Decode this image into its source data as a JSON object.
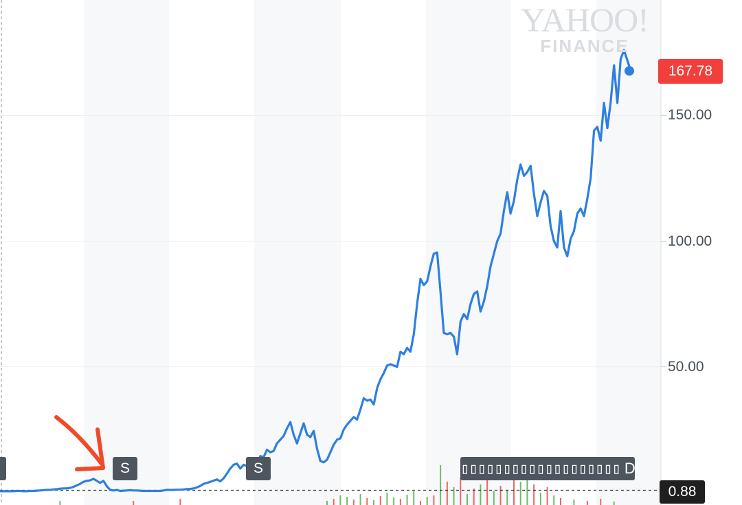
{
  "watermark": {
    "title": "YAHOO!",
    "subtitle": "FINANCE"
  },
  "markers": {
    "current_price_label": "167.78",
    "reference_price_label": "0.88",
    "split_label": "S",
    "dividend_glyphs": "▯▯▯▯▯▯▯▯▯▯▯▯▯▯▯▯▯▯▯",
    "dividend_end": "D"
  },
  "colors": {
    "line": "#2e7fe0",
    "up_volume": "#6dbb6a",
    "down_volume": "#ef6666",
    "annotation_arrow": "#ee4a2b",
    "price_badge": "#f23f3b",
    "flag": "#4d555e"
  },
  "chart_data": {
    "type": "line",
    "title": "",
    "xlabel": "",
    "ylabel": "",
    "ylim": [
      -5,
      196
    ],
    "y_ticks": [
      {
        "value": 50,
        "label": "50.00"
      },
      {
        "value": 100,
        "label": "100.00"
      },
      {
        "value": 150,
        "label": "150.00"
      }
    ],
    "reference_line": 0.88,
    "current_value": 167.78,
    "grid": true,
    "series": [
      {
        "values": [
          0.5,
          0.5,
          0.5,
          0.5,
          0.5,
          0.6,
          0.6,
          0.5,
          0.5,
          0.6,
          0.6,
          0.7,
          0.8,
          0.9,
          1.0,
          1.0,
          1.2,
          1.3,
          1.5,
          1.6,
          1.6,
          1.8,
          2.2,
          2.8,
          3.4,
          4.2,
          4.6,
          4.8,
          5.4,
          4.6,
          3.8,
          4.6,
          2.5,
          1.0,
          0.8,
          1.0,
          0.6,
          0.7,
          0.8,
          0.9,
          0.8,
          0.8,
          0.7,
          0.6,
          0.6,
          0.6,
          0.6,
          0.6,
          0.6,
          0.8,
          1.0,
          1.0,
          1.0,
          1.1,
          1.1,
          1.2,
          1.3,
          1.4,
          1.6,
          2.0,
          2.6,
          3.4,
          3.8,
          4.2,
          4.7,
          5.2,
          4.4,
          5.6,
          7.5,
          9.5,
          11.0,
          11.5,
          9.5,
          11.0,
          10.5,
          8.0,
          10.0,
          11.5,
          14.5,
          14.0,
          17.0,
          16.0,
          16.5,
          19.5,
          21.0,
          22.5,
          25.5,
          28.0,
          23.0,
          19.5,
          23.5,
          27.5,
          23.0,
          22.0,
          24.5,
          17.5,
          12.5,
          12.0,
          13.0,
          16.0,
          19.0,
          21.0,
          21.5,
          25.0,
          27.0,
          28.5,
          30.0,
          29.0,
          33.0,
          37.5,
          36.5,
          37.0,
          35.0,
          41.5,
          45.0,
          47.5,
          50.5,
          51.0,
          50.5,
          50.0,
          56.0,
          55.0,
          57.5,
          56.0,
          63.0,
          75.0,
          85.0,
          82.5,
          84.0,
          90.0,
          95.0,
          95.5,
          80.0,
          63.5,
          63.0,
          63.5,
          62.0,
          55.0,
          68.0,
          71.0,
          69.0,
          75.0,
          79.0,
          80.0,
          72.0,
          76.0,
          82.0,
          90.0,
          95.0,
          100.0,
          103.0,
          112.0,
          119.5,
          111.0,
          116.0,
          124.5,
          130.5,
          126.0,
          127.5,
          130.0,
          119.0,
          110.0,
          115.5,
          120.0,
          118.0,
          106.0,
          100.0,
          97.5,
          112.0,
          97.5,
          94.0,
          101.0,
          104.0,
          111.0,
          113.0,
          110.0,
          117.0,
          125.0,
          144.0,
          145.5,
          140.0,
          155.0,
          145.0,
          155.5,
          170.0,
          155.0,
          172.5,
          176.0,
          172.0,
          167.78
        ]
      }
    ],
    "volume": [
      {
        "i": 18,
        "v": 6,
        "d": "up"
      },
      {
        "i": 40,
        "v": 6,
        "d": "down"
      },
      {
        "i": 54,
        "v": 9,
        "d": "down"
      },
      {
        "i": 98,
        "v": 6,
        "d": "up"
      },
      {
        "i": 100,
        "v": 9,
        "d": "down"
      },
      {
        "i": 102,
        "v": 14,
        "d": "up"
      },
      {
        "i": 104,
        "v": 12,
        "d": "up"
      },
      {
        "i": 106,
        "v": 8,
        "d": "down"
      },
      {
        "i": 108,
        "v": 16,
        "d": "up"
      },
      {
        "i": 110,
        "v": 10,
        "d": "down"
      },
      {
        "i": 112,
        "v": 7,
        "d": "up"
      },
      {
        "i": 114,
        "v": 13,
        "d": "down"
      },
      {
        "i": 116,
        "v": 18,
        "d": "up"
      },
      {
        "i": 118,
        "v": 11,
        "d": "up"
      },
      {
        "i": 120,
        "v": 9,
        "d": "down"
      },
      {
        "i": 122,
        "v": 15,
        "d": "up"
      },
      {
        "i": 124,
        "v": 20,
        "d": "up"
      },
      {
        "i": 126,
        "v": 6,
        "d": "down"
      },
      {
        "i": 128,
        "v": 12,
        "d": "up"
      },
      {
        "i": 130,
        "v": 14,
        "d": "down"
      },
      {
        "i": 132,
        "v": 58,
        "d": "up"
      },
      {
        "i": 134,
        "v": 34,
        "d": "down"
      },
      {
        "i": 136,
        "v": 26,
        "d": "up"
      },
      {
        "i": 138,
        "v": 40,
        "d": "down"
      },
      {
        "i": 140,
        "v": 16,
        "d": "up"
      },
      {
        "i": 142,
        "v": 24,
        "d": "down"
      },
      {
        "i": 144,
        "v": 30,
        "d": "up"
      },
      {
        "i": 146,
        "v": 48,
        "d": "down"
      },
      {
        "i": 148,
        "v": 20,
        "d": "up"
      },
      {
        "i": 150,
        "v": 28,
        "d": "down"
      },
      {
        "i": 152,
        "v": 22,
        "d": "up"
      },
      {
        "i": 154,
        "v": 52,
        "d": "down"
      },
      {
        "i": 156,
        "v": 34,
        "d": "up"
      },
      {
        "i": 158,
        "v": 44,
        "d": "up"
      },
      {
        "i": 160,
        "v": 30,
        "d": "down"
      },
      {
        "i": 162,
        "v": 18,
        "d": "up"
      },
      {
        "i": 164,
        "v": 26,
        "d": "down"
      },
      {
        "i": 166,
        "v": 14,
        "d": "up"
      },
      {
        "i": 168,
        "v": 10,
        "d": "down"
      },
      {
        "i": 172,
        "v": 8,
        "d": "up"
      },
      {
        "i": 176,
        "v": 6,
        "d": "down"
      },
      {
        "i": 180,
        "v": 9,
        "d": "down"
      },
      {
        "i": 184,
        "v": 5,
        "d": "up"
      }
    ]
  }
}
